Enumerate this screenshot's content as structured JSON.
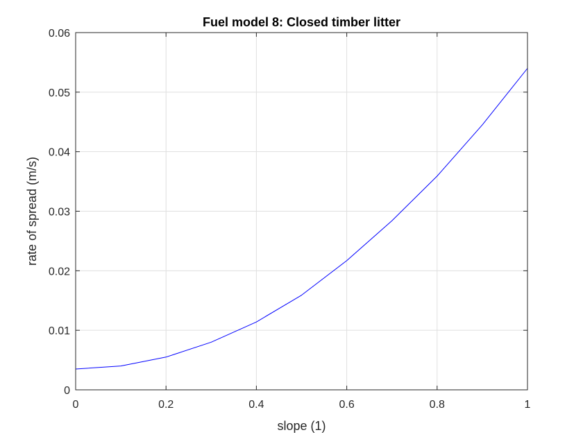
{
  "chart_data": {
    "type": "line",
    "title": "Fuel model 8: Closed timber litter",
    "xlabel": "slope (1)",
    "ylabel": "rate of spread (m/s)",
    "xlim": [
      0,
      1
    ],
    "ylim": [
      0,
      0.06
    ],
    "x_ticks": [
      "0",
      "0.2",
      "0.4",
      "0.6",
      "0.8",
      "1"
    ],
    "y_ticks": [
      "0",
      "0.01",
      "0.02",
      "0.03",
      "0.04",
      "0.05",
      "0.06"
    ],
    "grid": true,
    "series": [
      {
        "color": "#0000ff",
        "x": [
          0,
          0.1,
          0.2,
          0.3,
          0.4,
          0.5,
          0.6,
          0.7,
          0.8,
          0.9,
          1.0
        ],
        "y": [
          0.0035,
          0.004,
          0.0055,
          0.008,
          0.0114,
          0.0159,
          0.0217,
          0.0284,
          0.0359,
          0.0445,
          0.054
        ]
      }
    ]
  }
}
